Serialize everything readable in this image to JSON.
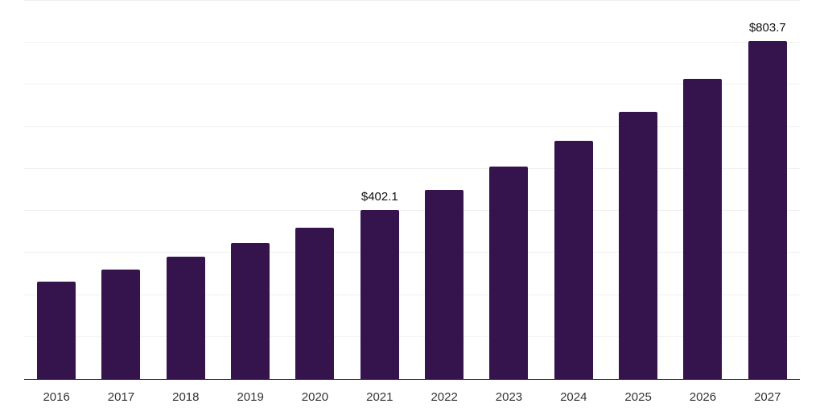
{
  "colors": {
    "background": "#ffffff",
    "bar": "#35144e",
    "gridline": "#f0f0f0",
    "axis": "#262626",
    "tick_label": "#333333",
    "value_label": "#111111"
  },
  "chart_data": {
    "type": "bar",
    "title": "",
    "xlabel": "",
    "ylabel": "",
    "categories": [
      "2016",
      "2017",
      "2018",
      "2019",
      "2020",
      "2021",
      "2022",
      "2023",
      "2024",
      "2025",
      "2026",
      "2027"
    ],
    "values": [
      231.6,
      260.2,
      290.9,
      323.4,
      359.8,
      402.1,
      449.9,
      505.4,
      566.6,
      635.5,
      714.0,
      803.7
    ],
    "value_labels": [
      "",
      "",
      "",
      "",
      "",
      "$402.1",
      "",
      "",
      "",
      "",
      "",
      "$803.7"
    ],
    "ylim": [
      0,
      900
    ],
    "gridline_step": 100,
    "grid": true,
    "legend": false,
    "y_tick_labels_visible": false
  }
}
